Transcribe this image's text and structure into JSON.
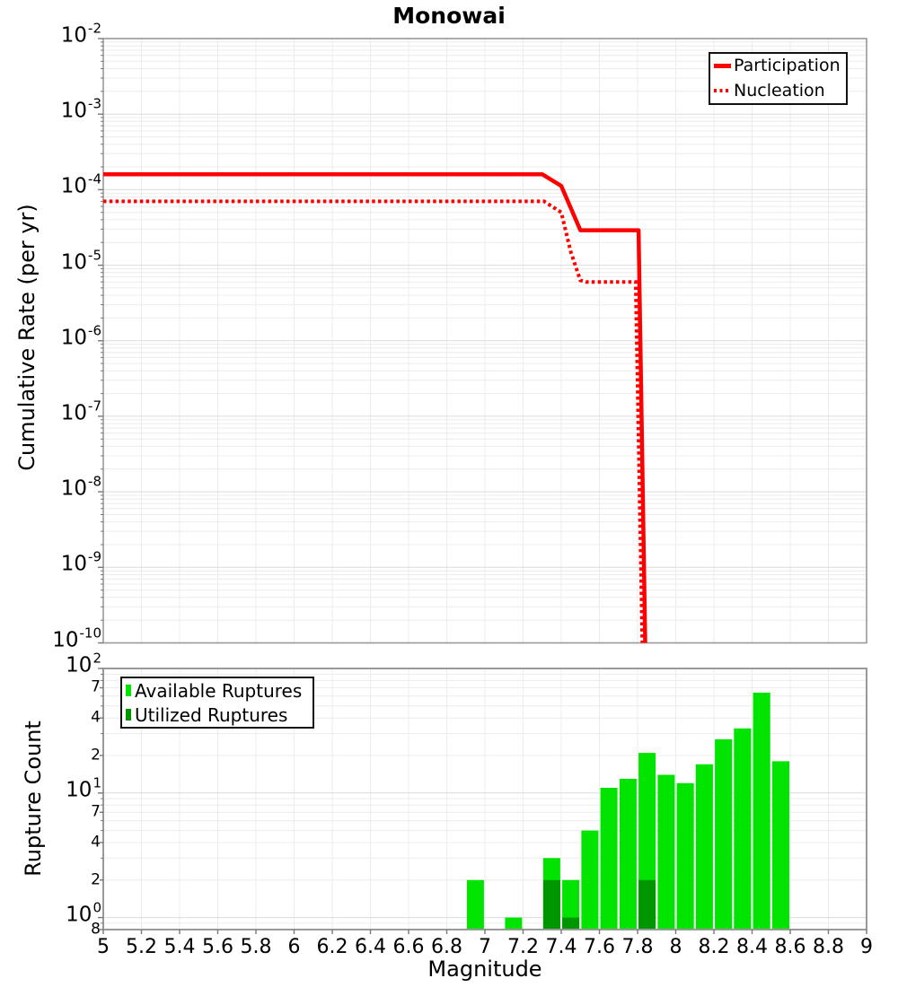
{
  "title": "Monowai",
  "colors": {
    "line_red": "#ff0000",
    "available_green": "#00e400",
    "utilized_green": "#009600",
    "grid_minor": "#ececec",
    "grid_major": "#dcdcdc",
    "frame": "#999999",
    "tick": "#777777",
    "text": "#000000",
    "legend_border": "#111111",
    "background": "#ffffff"
  },
  "top_legend": {
    "items": [
      {
        "label": "Participation",
        "style": "solid"
      },
      {
        "label": "Nucleation",
        "style": "dotted"
      }
    ]
  },
  "bottom_legend": {
    "items": [
      {
        "label": "Available Ruptures"
      },
      {
        "label": "Utilized Ruptures"
      }
    ]
  },
  "chart_data": [
    {
      "type": "line",
      "title": "Monowai",
      "xlabel": "",
      "ylabel": "Cumulative Rate (per yr)",
      "x_range": [
        5,
        9
      ],
      "y_range": [
        1e-10,
        0.01
      ],
      "y_scale": "log10",
      "grid": true,
      "legend_position": "top-right",
      "y_tick_exponents": [
        "-2",
        "-3",
        "-4",
        "-5",
        "-6",
        "-7",
        "-8",
        "-9",
        "-10"
      ],
      "series": [
        {
          "name": "Participation",
          "color": "#ff0000",
          "style": "solid",
          "points": [
            [
              5.0,
              0.00016
            ],
            [
              7.3,
              0.00016
            ],
            [
              7.4,
              0.000112
            ],
            [
              7.5,
              2.9e-05
            ],
            [
              7.805,
              2.9e-05
            ],
            [
              7.84,
              1e-10
            ]
          ]
        },
        {
          "name": "Nucleation",
          "color": "#ff0000",
          "style": "dotted",
          "points": [
            [
              5.0,
              7e-05
            ],
            [
              7.31,
              7e-05
            ],
            [
              7.4,
              5e-05
            ],
            [
              7.45,
              1.5e-05
            ],
            [
              7.5,
              6.3e-06
            ],
            [
              7.53,
              6e-06
            ],
            [
              7.79,
              6e-06
            ],
            [
              7.825,
              1e-10
            ]
          ]
        }
      ]
    },
    {
      "type": "bar",
      "title": "",
      "xlabel": "Magnitude",
      "ylabel": "Rupture Count",
      "x_range": [
        5,
        9
      ],
      "y_range": [
        0.8,
        100
      ],
      "y_scale": "log10",
      "grid": true,
      "legend_position": "top-left",
      "bin_width": 0.1,
      "x_tick_values": [
        5,
        5.2,
        5.4,
        5.6,
        5.8,
        6,
        6.2,
        6.4,
        6.6,
        6.8,
        7,
        7.2,
        7.4,
        7.6,
        7.8,
        8,
        8.2,
        8.4,
        8.6,
        8.8,
        9
      ],
      "x_tick_labels": [
        "5",
        "5.2",
        "5.4",
        "5.6",
        "5.8",
        "6",
        "6.2",
        "6.4",
        "6.6",
        "6.8",
        "7",
        "7.2",
        "7.4",
        "7.6",
        "7.8",
        "8",
        "8.2",
        "8.4",
        "8.6",
        "8.8",
        "9"
      ],
      "y_ticks": [
        {
          "base": "10",
          "exp": "2",
          "value": 100
        },
        {
          "label": "7",
          "value": 70
        },
        {
          "label": "4",
          "value": 40
        },
        {
          "label": "2",
          "value": 20
        },
        {
          "base": "10",
          "exp": "1",
          "value": 10
        },
        {
          "label": "7",
          "value": 7
        },
        {
          "label": "4",
          "value": 4
        },
        {
          "label": "2",
          "value": 2
        },
        {
          "base": "10",
          "exp": "0",
          "value": 1
        },
        {
          "label": "8",
          "value": 0.8
        }
      ],
      "series": [
        {
          "name": "Available Ruptures",
          "color": "#00e400",
          "bins": [
            6.95,
            7.15,
            7.35,
            7.45,
            7.55,
            7.65,
            7.75,
            7.85,
            7.95,
            8.05,
            8.15,
            8.25,
            8.35,
            8.45,
            8.55
          ],
          "values": [
            2,
            1,
            3,
            2,
            5,
            11,
            13,
            21,
            14,
            12,
            17,
            27,
            33,
            64,
            18
          ]
        },
        {
          "name": "Utilized Ruptures",
          "color": "#009600",
          "bins": [
            7.35,
            7.45,
            7.85
          ],
          "values": [
            2,
            1,
            2
          ]
        }
      ]
    }
  ]
}
